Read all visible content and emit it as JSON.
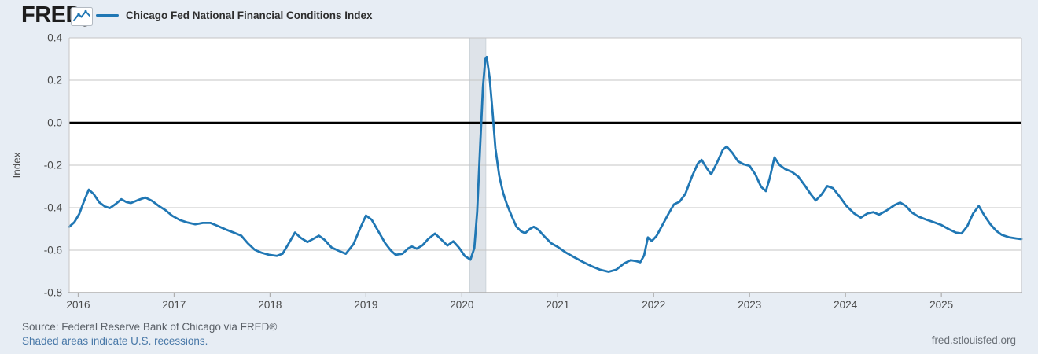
{
  "header": {
    "logo": "FRED",
    "logo_reg": "®",
    "legend_label": "Chicago Fed National Financial Conditions Index"
  },
  "footer": {
    "source": "Source: Federal Reserve Bank of Chicago via FRED®",
    "recession_note": "Shaded areas indicate U.S. recessions.",
    "site": "fred.stlouisfed.org"
  },
  "colors": {
    "page_bg": "#e7edf4",
    "plot_bg": "#ffffff",
    "grid": "#c4c4c4",
    "axis": "#aeaeae",
    "zero_line": "#000000",
    "series": "#2077b4",
    "recession_band": "#dee3e9",
    "tick_text": "#4a4a4a",
    "link": "#4878a8"
  },
  "chart_data": {
    "type": "line",
    "title": "Chicago Fed National Financial Conditions Index",
    "ylabel": "Index",
    "xlabel": "",
    "grid": true,
    "legend_position": "top-left",
    "y_range": [
      -0.8,
      0.4
    ],
    "x_range": [
      2015.906,
      2025.835
    ],
    "yticks": [
      0.4,
      0.2,
      0.0,
      -0.2,
      -0.4,
      -0.6,
      -0.8
    ],
    "xticks": [
      2016,
      2017,
      2018,
      2019,
      2020,
      2021,
      2022,
      2023,
      2024,
      2025
    ],
    "zero_line": 0,
    "recession_bands": [
      [
        2020.083,
        2020.25
      ]
    ],
    "series": [
      {
        "name": "Chicago Fed National Financial Conditions Index",
        "color": "#2077b4",
        "points": [
          [
            2015.906,
            -0.49
          ],
          [
            2015.96,
            -0.468
          ],
          [
            2016.01,
            -0.43
          ],
          [
            2016.06,
            -0.37
          ],
          [
            2016.11,
            -0.315
          ],
          [
            2016.16,
            -0.335
          ],
          [
            2016.22,
            -0.375
          ],
          [
            2016.28,
            -0.395
          ],
          [
            2016.33,
            -0.402
          ],
          [
            2016.39,
            -0.383
          ],
          [
            2016.45,
            -0.36
          ],
          [
            2016.5,
            -0.373
          ],
          [
            2016.55,
            -0.378
          ],
          [
            2016.62,
            -0.365
          ],
          [
            2016.7,
            -0.352
          ],
          [
            2016.77,
            -0.368
          ],
          [
            2016.84,
            -0.392
          ],
          [
            2016.91,
            -0.412
          ],
          [
            2016.98,
            -0.438
          ],
          [
            2017.06,
            -0.458
          ],
          [
            2017.14,
            -0.47
          ],
          [
            2017.22,
            -0.478
          ],
          [
            2017.3,
            -0.472
          ],
          [
            2017.38,
            -0.472
          ],
          [
            2017.46,
            -0.487
          ],
          [
            2017.54,
            -0.503
          ],
          [
            2017.62,
            -0.517
          ],
          [
            2017.7,
            -0.532
          ],
          [
            2017.77,
            -0.568
          ],
          [
            2017.84,
            -0.598
          ],
          [
            2017.91,
            -0.612
          ],
          [
            2017.99,
            -0.622
          ],
          [
            2018.07,
            -0.627
          ],
          [
            2018.13,
            -0.617
          ],
          [
            2018.19,
            -0.572
          ],
          [
            2018.26,
            -0.517
          ],
          [
            2018.32,
            -0.542
          ],
          [
            2018.39,
            -0.562
          ],
          [
            2018.45,
            -0.547
          ],
          [
            2018.51,
            -0.532
          ],
          [
            2018.57,
            -0.552
          ],
          [
            2018.64,
            -0.587
          ],
          [
            2018.71,
            -0.602
          ],
          [
            2018.79,
            -0.617
          ],
          [
            2018.87,
            -0.572
          ],
          [
            2018.94,
            -0.497
          ],
          [
            2019.0,
            -0.437
          ],
          [
            2019.06,
            -0.457
          ],
          [
            2019.13,
            -0.512
          ],
          [
            2019.2,
            -0.567
          ],
          [
            2019.26,
            -0.602
          ],
          [
            2019.31,
            -0.622
          ],
          [
            2019.38,
            -0.617
          ],
          [
            2019.44,
            -0.592
          ],
          [
            2019.48,
            -0.583
          ],
          [
            2019.53,
            -0.593
          ],
          [
            2019.59,
            -0.577
          ],
          [
            2019.65,
            -0.547
          ],
          [
            2019.72,
            -0.522
          ],
          [
            2019.79,
            -0.552
          ],
          [
            2019.85,
            -0.578
          ],
          [
            2019.91,
            -0.558
          ],
          [
            2019.97,
            -0.588
          ],
          [
            2020.03,
            -0.627
          ],
          [
            2020.09,
            -0.645
          ],
          [
            2020.13,
            -0.59
          ],
          [
            2020.16,
            -0.42
          ],
          [
            2020.19,
            -0.12
          ],
          [
            2020.22,
            0.17
          ],
          [
            2020.245,
            0.3
          ],
          [
            2020.26,
            0.31
          ],
          [
            2020.29,
            0.21
          ],
          [
            2020.32,
            0.05
          ],
          [
            2020.35,
            -0.12
          ],
          [
            2020.39,
            -0.25
          ],
          [
            2020.43,
            -0.33
          ],
          [
            2020.47,
            -0.385
          ],
          [
            2020.52,
            -0.44
          ],
          [
            2020.57,
            -0.49
          ],
          [
            2020.62,
            -0.512
          ],
          [
            2020.66,
            -0.52
          ],
          [
            2020.71,
            -0.5
          ],
          [
            2020.75,
            -0.49
          ],
          [
            2020.8,
            -0.505
          ],
          [
            2020.86,
            -0.535
          ],
          [
            2020.93,
            -0.567
          ],
          [
            2021.0,
            -0.585
          ],
          [
            2021.08,
            -0.61
          ],
          [
            2021.17,
            -0.633
          ],
          [
            2021.26,
            -0.655
          ],
          [
            2021.35,
            -0.675
          ],
          [
            2021.44,
            -0.692
          ],
          [
            2021.53,
            -0.702
          ],
          [
            2021.61,
            -0.692
          ],
          [
            2021.69,
            -0.663
          ],
          [
            2021.76,
            -0.647
          ],
          [
            2021.82,
            -0.652
          ],
          [
            2021.86,
            -0.657
          ],
          [
            2021.9,
            -0.625
          ],
          [
            2021.94,
            -0.54
          ],
          [
            2021.98,
            -0.557
          ],
          [
            2022.03,
            -0.533
          ],
          [
            2022.09,
            -0.483
          ],
          [
            2022.15,
            -0.432
          ],
          [
            2022.21,
            -0.385
          ],
          [
            2022.27,
            -0.372
          ],
          [
            2022.33,
            -0.335
          ],
          [
            2022.4,
            -0.253
          ],
          [
            2022.46,
            -0.192
          ],
          [
            2022.5,
            -0.175
          ],
          [
            2022.55,
            -0.212
          ],
          [
            2022.6,
            -0.243
          ],
          [
            2022.66,
            -0.188
          ],
          [
            2022.72,
            -0.128
          ],
          [
            2022.76,
            -0.112
          ],
          [
            2022.82,
            -0.142
          ],
          [
            2022.88,
            -0.182
          ],
          [
            2022.94,
            -0.196
          ],
          [
            2023.0,
            -0.203
          ],
          [
            2023.06,
            -0.243
          ],
          [
            2023.12,
            -0.302
          ],
          [
            2023.17,
            -0.322
          ],
          [
            2023.21,
            -0.262
          ],
          [
            2023.26,
            -0.163
          ],
          [
            2023.31,
            -0.198
          ],
          [
            2023.37,
            -0.218
          ],
          [
            2023.44,
            -0.231
          ],
          [
            2023.51,
            -0.255
          ],
          [
            2023.58,
            -0.298
          ],
          [
            2023.64,
            -0.338
          ],
          [
            2023.69,
            -0.366
          ],
          [
            2023.75,
            -0.338
          ],
          [
            2023.81,
            -0.298
          ],
          [
            2023.87,
            -0.308
          ],
          [
            2023.94,
            -0.348
          ],
          [
            2024.01,
            -0.392
          ],
          [
            2024.09,
            -0.427
          ],
          [
            2024.16,
            -0.447
          ],
          [
            2024.23,
            -0.427
          ],
          [
            2024.29,
            -0.421
          ],
          [
            2024.35,
            -0.433
          ],
          [
            2024.43,
            -0.413
          ],
          [
            2024.51,
            -0.388
          ],
          [
            2024.57,
            -0.376
          ],
          [
            2024.63,
            -0.392
          ],
          [
            2024.69,
            -0.422
          ],
          [
            2024.76,
            -0.442
          ],
          [
            2024.84,
            -0.456
          ],
          [
            2024.92,
            -0.468
          ],
          [
            2025.0,
            -0.482
          ],
          [
            2025.08,
            -0.502
          ],
          [
            2025.15,
            -0.517
          ],
          [
            2025.21,
            -0.521
          ],
          [
            2025.27,
            -0.487
          ],
          [
            2025.33,
            -0.428
          ],
          [
            2025.39,
            -0.392
          ],
          [
            2025.45,
            -0.438
          ],
          [
            2025.51,
            -0.478
          ],
          [
            2025.57,
            -0.508
          ],
          [
            2025.63,
            -0.528
          ],
          [
            2025.71,
            -0.54
          ],
          [
            2025.78,
            -0.545
          ],
          [
            2025.835,
            -0.548
          ]
        ]
      }
    ]
  }
}
